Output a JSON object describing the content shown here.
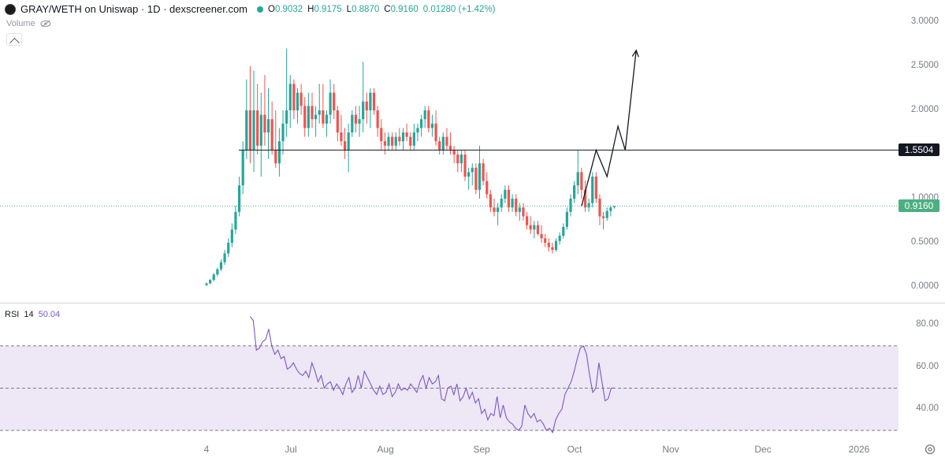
{
  "header": {
    "symbol_title": "GRAY/WETH on Uniswap · 1D · dexscreener.com",
    "ohlc": [
      {
        "key": "O",
        "value": "0.9032"
      },
      {
        "key": "H",
        "value": "0.9175"
      },
      {
        "key": "L",
        "value": "0.8870"
      },
      {
        "key": "C",
        "value": "0.9160"
      }
    ],
    "change": "0.01280 (+1.42%)",
    "volume_label": "Volume"
  },
  "rsi_legend": {
    "name": "RSI",
    "length": "14",
    "value": "50.04"
  },
  "tv_logo": "17",
  "colors": {
    "up": "#26a69a",
    "down": "#ef5350",
    "rsi_line": "#7e57c2",
    "rsi_band": "#ede7f6",
    "hline": "#131722",
    "current_price": "#4caf82"
  },
  "chart_data": [
    {
      "type": "candlestick",
      "x_axis_labels": [
        "4",
        "Jul",
        "Aug",
        "Sep",
        "Oct",
        "Nov",
        "Dec",
        "2026"
      ],
      "y_axis_labels": [
        "3.0000",
        "2.5000",
        "2.0000",
        "1.5000",
        "1.0000",
        "0.5000",
        "0.0000"
      ],
      "ylim": [
        0,
        3
      ],
      "horizontal_line": {
        "value": 1.5504,
        "label": "1.5504"
      },
      "current_price": {
        "value": 0.916,
        "label": "0.9160"
      },
      "candles": [
        {
          "o": 0.02,
          "h": 0.05,
          "l": 0.01,
          "c": 0.04
        },
        {
          "o": 0.04,
          "h": 0.09,
          "l": 0.03,
          "c": 0.08
        },
        {
          "o": 0.08,
          "h": 0.16,
          "l": 0.06,
          "c": 0.14
        },
        {
          "o": 0.14,
          "h": 0.22,
          "l": 0.12,
          "c": 0.2
        },
        {
          "o": 0.2,
          "h": 0.31,
          "l": 0.18,
          "c": 0.28
        },
        {
          "o": 0.28,
          "h": 0.42,
          "l": 0.25,
          "c": 0.38
        },
        {
          "o": 0.38,
          "h": 0.55,
          "l": 0.34,
          "c": 0.5
        },
        {
          "o": 0.5,
          "h": 0.72,
          "l": 0.45,
          "c": 0.65
        },
        {
          "o": 0.65,
          "h": 0.92,
          "l": 0.6,
          "c": 0.85
        },
        {
          "o": 0.85,
          "h": 1.25,
          "l": 0.8,
          "c": 1.15
        },
        {
          "o": 1.15,
          "h": 1.65,
          "l": 1.05,
          "c": 1.55
        },
        {
          "o": 1.55,
          "h": 2.35,
          "l": 1.45,
          "c": 2.0
        },
        {
          "o": 2.0,
          "h": 2.5,
          "l": 1.4,
          "c": 1.55
        },
        {
          "o": 1.55,
          "h": 2.45,
          "l": 1.3,
          "c": 2.0
        },
        {
          "o": 2.0,
          "h": 2.3,
          "l": 1.5,
          "c": 1.6
        },
        {
          "o": 1.6,
          "h": 2.2,
          "l": 1.25,
          "c": 1.95
        },
        {
          "o": 1.95,
          "h": 2.4,
          "l": 1.6,
          "c": 1.75
        },
        {
          "o": 1.75,
          "h": 2.25,
          "l": 1.45,
          "c": 1.9
        },
        {
          "o": 1.9,
          "h": 2.1,
          "l": 1.5,
          "c": 1.55
        },
        {
          "o": 1.55,
          "h": 2.0,
          "l": 1.35,
          "c": 1.4
        },
        {
          "o": 1.4,
          "h": 1.8,
          "l": 1.25,
          "c": 1.65
        },
        {
          "o": 1.65,
          "h": 2.0,
          "l": 1.5,
          "c": 1.85
        },
        {
          "o": 1.85,
          "h": 2.7,
          "l": 1.7,
          "c": 2.0
        },
        {
          "o": 2.0,
          "h": 2.4,
          "l": 1.8,
          "c": 2.3
        },
        {
          "o": 2.3,
          "h": 2.35,
          "l": 1.9,
          "c": 2.0
        },
        {
          "o": 2.0,
          "h": 2.25,
          "l": 1.85,
          "c": 2.2
        },
        {
          "o": 2.2,
          "h": 2.3,
          "l": 1.95,
          "c": 2.05
        },
        {
          "o": 2.05,
          "h": 2.15,
          "l": 1.7,
          "c": 1.8
        },
        {
          "o": 1.8,
          "h": 2.2,
          "l": 1.7,
          "c": 2.05
        },
        {
          "o": 2.05,
          "h": 2.2,
          "l": 1.8,
          "c": 1.9
        },
        {
          "o": 1.9,
          "h": 2.05,
          "l": 1.7,
          "c": 1.95
        },
        {
          "o": 1.95,
          "h": 2.3,
          "l": 1.85,
          "c": 2.0
        },
        {
          "o": 2.0,
          "h": 2.3,
          "l": 1.8,
          "c": 1.85
        },
        {
          "o": 1.85,
          "h": 2.0,
          "l": 1.7,
          "c": 1.95
        },
        {
          "o": 1.95,
          "h": 2.35,
          "l": 1.85,
          "c": 2.2
        },
        {
          "o": 2.2,
          "h": 2.3,
          "l": 1.9,
          "c": 2.0
        },
        {
          "o": 2.0,
          "h": 2.05,
          "l": 1.65,
          "c": 1.75
        },
        {
          "o": 1.75,
          "h": 1.95,
          "l": 1.6,
          "c": 1.65
        },
        {
          "o": 1.65,
          "h": 1.8,
          "l": 1.45,
          "c": 1.55
        },
        {
          "o": 1.55,
          "h": 1.85,
          "l": 1.3,
          "c": 1.75
        },
        {
          "o": 1.75,
          "h": 2.0,
          "l": 1.7,
          "c": 1.95
        },
        {
          "o": 1.95,
          "h": 2.05,
          "l": 1.75,
          "c": 1.85
        },
        {
          "o": 1.85,
          "h": 2.05,
          "l": 1.7,
          "c": 1.9
        },
        {
          "o": 1.9,
          "h": 2.55,
          "l": 1.75,
          "c": 2.1
        },
        {
          "o": 2.1,
          "h": 2.2,
          "l": 1.85,
          "c": 2.0
        },
        {
          "o": 2.0,
          "h": 2.25,
          "l": 1.8,
          "c": 2.2
        },
        {
          "o": 2.2,
          "h": 2.25,
          "l": 1.95,
          "c": 2.0
        },
        {
          "o": 2.0,
          "h": 2.05,
          "l": 1.7,
          "c": 1.8
        },
        {
          "o": 1.8,
          "h": 1.9,
          "l": 1.55,
          "c": 1.65
        },
        {
          "o": 1.65,
          "h": 1.75,
          "l": 1.5,
          "c": 1.6
        },
        {
          "o": 1.6,
          "h": 1.75,
          "l": 1.55,
          "c": 1.7
        },
        {
          "o": 1.7,
          "h": 1.75,
          "l": 1.55,
          "c": 1.6
        },
        {
          "o": 1.6,
          "h": 1.75,
          "l": 1.55,
          "c": 1.7
        },
        {
          "o": 1.7,
          "h": 1.8,
          "l": 1.6,
          "c": 1.65
        },
        {
          "o": 1.65,
          "h": 1.8,
          "l": 1.55,
          "c": 1.75
        },
        {
          "o": 1.75,
          "h": 1.85,
          "l": 1.65,
          "c": 1.7
        },
        {
          "o": 1.7,
          "h": 1.75,
          "l": 1.55,
          "c": 1.6
        },
        {
          "o": 1.6,
          "h": 1.85,
          "l": 1.55,
          "c": 1.75
        },
        {
          "o": 1.75,
          "h": 1.85,
          "l": 1.65,
          "c": 1.8
        },
        {
          "o": 1.8,
          "h": 1.95,
          "l": 1.7,
          "c": 1.9
        },
        {
          "o": 1.9,
          "h": 2.05,
          "l": 1.8,
          "c": 2.0
        },
        {
          "o": 2.0,
          "h": 2.05,
          "l": 1.75,
          "c": 1.8
        },
        {
          "o": 1.8,
          "h": 1.95,
          "l": 1.7,
          "c": 1.85
        },
        {
          "o": 1.85,
          "h": 2.0,
          "l": 1.6,
          "c": 1.65
        },
        {
          "o": 1.65,
          "h": 1.7,
          "l": 1.5,
          "c": 1.55
        },
        {
          "o": 1.55,
          "h": 1.75,
          "l": 1.5,
          "c": 1.7
        },
        {
          "o": 1.7,
          "h": 1.8,
          "l": 1.55,
          "c": 1.6
        },
        {
          "o": 1.6,
          "h": 1.75,
          "l": 1.5,
          "c": 1.55
        },
        {
          "o": 1.55,
          "h": 1.6,
          "l": 1.4,
          "c": 1.5
        },
        {
          "o": 1.5,
          "h": 1.55,
          "l": 1.3,
          "c": 1.4
        },
        {
          "o": 1.4,
          "h": 1.55,
          "l": 1.3,
          "c": 1.5
        },
        {
          "o": 1.5,
          "h": 1.55,
          "l": 1.2,
          "c": 1.25
        },
        {
          "o": 1.25,
          "h": 1.35,
          "l": 1.1,
          "c": 1.3
        },
        {
          "o": 1.3,
          "h": 1.4,
          "l": 1.15,
          "c": 1.35
        },
        {
          "o": 1.35,
          "h": 1.4,
          "l": 1.05,
          "c": 1.1
        },
        {
          "o": 1.1,
          "h": 1.6,
          "l": 1.0,
          "c": 1.4
        },
        {
          "o": 1.4,
          "h": 1.45,
          "l": 1.15,
          "c": 1.2
        },
        {
          "o": 1.2,
          "h": 1.3,
          "l": 1.0,
          "c": 1.05
        },
        {
          "o": 1.05,
          "h": 1.1,
          "l": 0.85,
          "c": 0.9
        },
        {
          "o": 0.9,
          "h": 1.0,
          "l": 0.8,
          "c": 0.85
        },
        {
          "o": 0.85,
          "h": 0.95,
          "l": 0.7,
          "c": 0.9
        },
        {
          "o": 0.9,
          "h": 1.05,
          "l": 0.85,
          "c": 1.0
        },
        {
          "o": 1.0,
          "h": 1.15,
          "l": 0.95,
          "c": 1.1
        },
        {
          "o": 1.1,
          "h": 1.15,
          "l": 0.85,
          "c": 0.9
        },
        {
          "o": 0.9,
          "h": 1.05,
          "l": 0.85,
          "c": 1.0
        },
        {
          "o": 1.0,
          "h": 1.05,
          "l": 0.8,
          "c": 0.85
        },
        {
          "o": 0.85,
          "h": 0.95,
          "l": 0.75,
          "c": 0.9
        },
        {
          "o": 0.9,
          "h": 0.95,
          "l": 0.75,
          "c": 0.8
        },
        {
          "o": 0.8,
          "h": 0.85,
          "l": 0.65,
          "c": 0.7
        },
        {
          "o": 0.7,
          "h": 0.8,
          "l": 0.6,
          "c": 0.65
        },
        {
          "o": 0.65,
          "h": 0.75,
          "l": 0.55,
          "c": 0.7
        },
        {
          "o": 0.7,
          "h": 0.75,
          "l": 0.58,
          "c": 0.6
        },
        {
          "o": 0.6,
          "h": 0.7,
          "l": 0.5,
          "c": 0.55
        },
        {
          "o": 0.55,
          "h": 0.6,
          "l": 0.45,
          "c": 0.5
        },
        {
          "o": 0.5,
          "h": 0.55,
          "l": 0.4,
          "c": 0.45
        },
        {
          "o": 0.45,
          "h": 0.5,
          "l": 0.38,
          "c": 0.42
        },
        {
          "o": 0.42,
          "h": 0.55,
          "l": 0.4,
          "c": 0.52
        },
        {
          "o": 0.52,
          "h": 0.62,
          "l": 0.48,
          "c": 0.58
        },
        {
          "o": 0.58,
          "h": 0.72,
          "l": 0.55,
          "c": 0.68
        },
        {
          "o": 0.68,
          "h": 0.9,
          "l": 0.65,
          "c": 0.85
        },
        {
          "o": 0.85,
          "h": 1.05,
          "l": 0.8,
          "c": 1.0
        },
        {
          "o": 1.0,
          "h": 1.2,
          "l": 0.95,
          "c": 1.15
        },
        {
          "o": 1.15,
          "h": 1.55,
          "l": 1.05,
          "c": 1.3
        },
        {
          "o": 1.3,
          "h": 1.35,
          "l": 1.0,
          "c": 1.1
        },
        {
          "o": 1.1,
          "h": 1.2,
          "l": 0.85,
          "c": 0.9
        },
        {
          "o": 0.9,
          "h": 1.0,
          "l": 0.85,
          "c": 0.95
        },
        {
          "o": 0.95,
          "h": 1.3,
          "l": 0.9,
          "c": 1.25
        },
        {
          "o": 1.25,
          "h": 1.3,
          "l": 0.95,
          "c": 1.0
        },
        {
          "o": 1.0,
          "h": 1.05,
          "l": 0.7,
          "c": 0.8
        },
        {
          "o": 0.8,
          "h": 0.85,
          "l": 0.65,
          "c": 0.78
        },
        {
          "o": 0.78,
          "h": 0.9,
          "l": 0.75,
          "c": 0.86
        },
        {
          "o": 0.86,
          "h": 0.92,
          "l": 0.8,
          "c": 0.9
        },
        {
          "o": 0.9032,
          "h": 0.9175,
          "l": 0.887,
          "c": 0.916
        }
      ],
      "projection_path": [
        [
          103,
          0.916
        ],
        [
          107,
          1.55
        ],
        [
          110,
          1.25
        ],
        [
          113,
          1.82
        ],
        [
          115,
          1.55
        ],
        [
          118,
          2.68
        ]
      ]
    },
    {
      "type": "line",
      "name": "RSI 14",
      "y_axis_labels": [
        "80.00",
        "60.00",
        "40.00"
      ],
      "ylim": [
        27,
        90
      ],
      "bands": [
        30,
        50,
        70
      ],
      "values": [
        84,
        82,
        68,
        69,
        72,
        73,
        78,
        70,
        66,
        68,
        64,
        65,
        59,
        60,
        62,
        59,
        57,
        56,
        58,
        55,
        62,
        58,
        53,
        56,
        50,
        52,
        53,
        49,
        52,
        50,
        47,
        52,
        55,
        48,
        50,
        56,
        50,
        58,
        55,
        52,
        49,
        47,
        51,
        47,
        48,
        52,
        46,
        48,
        52,
        49,
        50,
        49,
        52,
        50,
        48,
        53,
        56,
        50,
        55,
        52,
        53,
        56,
        45,
        44,
        50,
        51,
        47,
        52,
        44,
        46,
        50,
        45,
        48,
        43,
        45,
        38,
        40,
        35,
        38,
        37,
        46,
        36,
        42,
        36,
        34,
        33,
        31,
        30,
        32,
        42,
        38,
        36,
        38,
        34,
        35,
        33,
        30,
        31,
        29,
        35,
        38,
        40,
        47,
        50,
        53,
        58,
        64,
        69,
        70,
        66,
        56,
        48,
        50,
        62,
        53,
        44,
        45,
        50,
        50.04
      ]
    }
  ]
}
